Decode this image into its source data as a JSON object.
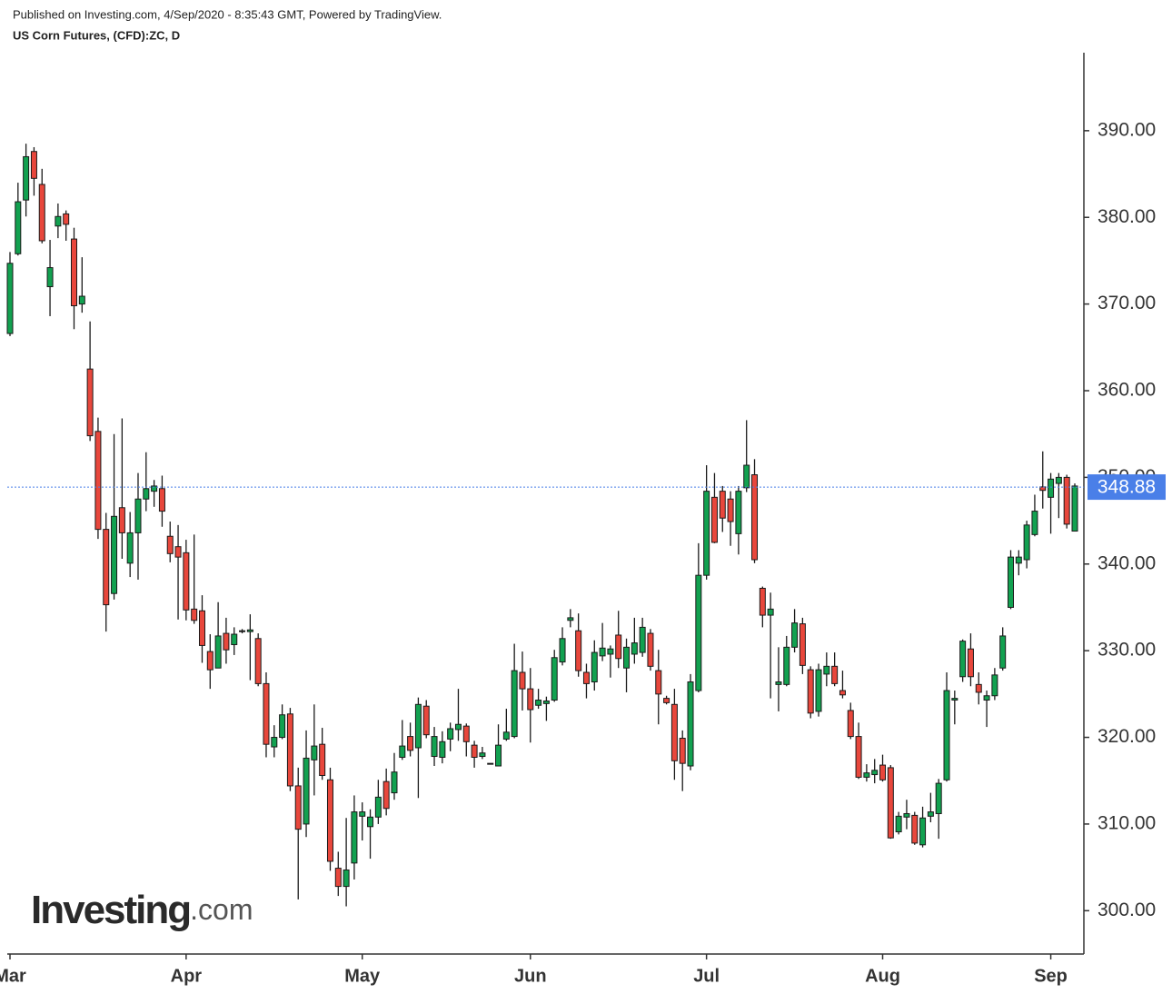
{
  "chart_data": {
    "type": "candlestick",
    "subtitle": "Published on Investing.com, 4/Sep/2020 - 8:35:43 GMT, Powered by TradingView.",
    "title": "US Corn Futures, (CFD):ZC, D",
    "watermark": {
      "brand": "Investing",
      "suffix": ".com"
    },
    "categories": [
      "Mar",
      null,
      null,
      null,
      null,
      null,
      null,
      null,
      null,
      null,
      null,
      null,
      null,
      null,
      null,
      null,
      null,
      null,
      null,
      null,
      null,
      null,
      "Apr",
      null,
      null,
      null,
      null,
      null,
      null,
      null,
      null,
      null,
      null,
      null,
      null,
      null,
      null,
      null,
      null,
      null,
      null,
      null,
      null,
      null,
      "May",
      null,
      null,
      null,
      null,
      null,
      null,
      null,
      null,
      null,
      null,
      null,
      null,
      null,
      null,
      null,
      null,
      null,
      null,
      null,
      null,
      "Jun",
      null,
      null,
      null,
      null,
      null,
      null,
      null,
      null,
      null,
      null,
      null,
      null,
      null,
      null,
      null,
      null,
      null,
      null,
      null,
      null,
      null,
      "Jul",
      null,
      null,
      null,
      null,
      null,
      null,
      null,
      null,
      null,
      null,
      null,
      null,
      null,
      null,
      null,
      null,
      null,
      null,
      null,
      null,
      null,
      "Aug",
      null,
      null,
      null,
      null,
      null,
      null,
      null,
      null,
      null,
      null,
      null,
      null,
      null,
      null,
      null,
      null,
      null,
      null,
      null,
      null,
      "Sep",
      null,
      null,
      null
    ],
    "open": [
      366.6,
      375.8,
      382,
      387.6,
      383.8,
      372,
      379,
      380.4,
      377.5,
      370,
      362.5,
      355.3,
      344,
      336.6,
      346.5,
      340.1,
      343.6,
      347.5,
      348.4,
      348.7,
      343.2,
      342,
      341.3,
      334.8,
      334.6,
      329.9,
      328,
      332,
      330.7,
      332.2,
      332.2,
      331.4,
      326.2,
      318.9,
      320,
      322.7,
      314.4,
      310,
      317.4,
      319.2,
      315.1,
      304.9,
      302.8,
      305.5,
      310.9,
      309.7,
      310.8,
      314.9,
      313.6,
      317.7,
      320.1,
      318.8,
      323.6,
      317.8,
      317.7,
      319.8,
      320.9,
      321.3,
      319.1,
      317.8,
      316.9,
      316.7,
      319.8,
      320.1,
      327.5,
      325.6,
      323.7,
      323.9,
      324.3,
      328.7,
      333.5,
      332.3,
      327.5,
      326.4,
      329.4,
      329.6,
      331.8,
      328,
      329.6,
      329.8,
      332,
      327.7,
      324.5,
      323.8,
      319.9,
      316.7,
      325.4,
      338.7,
      347.7,
      348.4,
      347.5,
      343.5,
      348.8,
      350.3,
      337.2,
      334.1,
      326.1,
      326.1,
      330.4,
      333.1,
      327.8,
      323,
      327.3,
      328.2,
      325.4,
      323.1,
      320.1,
      315.4,
      315.7,
      316.8,
      316.5,
      309.1,
      310.8,
      311,
      307.6,
      310.9,
      311.2,
      315.1,
      324.3,
      327,
      330.2,
      326.1,
      324.3,
      324.8,
      328,
      335,
      340.1,
      340.5,
      343.4,
      348.9,
      347.7,
      349.3,
      350,
      343.8
    ],
    "high": [
      376,
      384,
      388.5,
      388.1,
      385.6,
      377.4,
      381.6,
      380.8,
      378.8,
      375.4,
      368,
      356.9,
      345.9,
      355,
      356.8,
      346,
      350.5,
      352.9,
      349.7,
      350.2,
      344.9,
      344.5,
      342.8,
      343.4,
      336.4,
      331.9,
      335.6,
      333.8,
      332.7,
      332.5,
      334.2,
      332,
      327.5,
      321.4,
      323.8,
      323.4,
      316.5,
      320.8,
      323.8,
      321.1,
      316.5,
      306.8,
      310.7,
      313.3,
      312.5,
      311.7,
      315.1,
      316.4,
      318.2,
      322,
      321.7,
      324.6,
      324.3,
      321.2,
      320.7,
      321.7,
      325.6,
      321.6,
      319.6,
      318.9,
      317,
      321.5,
      323.3,
      330.8,
      329.9,
      328,
      325.6,
      324.7,
      330.1,
      332.7,
      334.8,
      334.3,
      328.5,
      331.2,
      333.2,
      330.6,
      334.6,
      331.4,
      333.8,
      333.8,
      332.5,
      330.1,
      324.8,
      325.6,
      320.8,
      327.3,
      342.4,
      351.4,
      350.5,
      349,
      348.4,
      349,
      356.6,
      352.1,
      337.4,
      336.7,
      330.4,
      331.7,
      334.8,
      333.8,
      328.2,
      328.5,
      329.8,
      329.8,
      327.7,
      324,
      321.7,
      316.9,
      317.5,
      318,
      316.8,
      311.4,
      312.8,
      311.4,
      312,
      313.6,
      315.2,
      327.5,
      325.4,
      331.3,
      332,
      327.5,
      325.4,
      328,
      332.7,
      341.6,
      341.6,
      345,
      348,
      353,
      350.5,
      350.5,
      350.3,
      349.3
    ],
    "low": [
      366.3,
      375.6,
      380.1,
      382.5,
      377,
      368.6,
      377.6,
      377.3,
      367.1,
      369,
      354.2,
      342.9,
      332.2,
      335.9,
      340.6,
      338.5,
      338.2,
      346.1,
      346.6,
      344.3,
      340.2,
      333.6,
      333.5,
      333.1,
      328.6,
      325.6,
      328,
      328.5,
      329.5,
      332,
      326.6,
      325.9,
      317.7,
      317.7,
      319.8,
      313.8,
      301.3,
      308.5,
      313.3,
      315.1,
      304.6,
      301.7,
      300.5,
      303.6,
      308.1,
      306,
      310,
      311,
      312.8,
      317.4,
      317.8,
      313,
      319.9,
      316.7,
      317,
      318.4,
      319.6,
      317.8,
      316.5,
      317.5,
      316.9,
      316.7,
      319.6,
      319.9,
      323.1,
      319.4,
      323.3,
      321.9,
      324.1,
      328.3,
      332.7,
      327,
      324.5,
      325.4,
      328.8,
      326.9,
      328,
      325.2,
      328.5,
      329.3,
      327.7,
      321.5,
      323.8,
      315.1,
      313.8,
      316.2,
      325.2,
      338.2,
      342.4,
      343.7,
      342.1,
      341.1,
      348.3,
      340.1,
      332.7,
      324.5,
      323,
      325.9,
      329.8,
      327.3,
      322.2,
      322.4,
      325.9,
      325.9,
      324.5,
      319.8,
      315.2,
      314.9,
      314.7,
      314.9,
      308.3,
      308.8,
      309.4,
      307.6,
      307.3,
      310.2,
      308.3,
      314.9,
      321.5,
      326.4,
      325.9,
      323.8,
      321.2,
      324.3,
      327.7,
      334.8,
      338.7,
      339.5,
      343.2,
      346.4,
      343.5,
      345.3,
      344.1,
      343.8
    ],
    "close": [
      374.7,
      381.8,
      387,
      384.5,
      377.3,
      374.2,
      380.1,
      379.2,
      369.8,
      370.9,
      354.8,
      344,
      335.3,
      345.5,
      343.6,
      343.6,
      347.5,
      348.7,
      349,
      346.1,
      341.2,
      340.8,
      334.7,
      333.5,
      330.6,
      327.8,
      331.7,
      330.1,
      331.9,
      332.3,
      332.4,
      326.2,
      319.2,
      320,
      322.6,
      314.4,
      309.4,
      317.6,
      319,
      315.6,
      305.7,
      302.8,
      304.7,
      311.4,
      311.4,
      310.8,
      313.1,
      311.8,
      316,
      319,
      318.5,
      323.8,
      320.3,
      320.1,
      319.5,
      321,
      321.5,
      319.5,
      317.7,
      318.2,
      317,
      319.1,
      320.6,
      327.7,
      325.6,
      323.2,
      324.3,
      324.2,
      329.2,
      331.4,
      333.8,
      327.7,
      326.2,
      329.8,
      330.3,
      330.2,
      329.1,
      330.4,
      330.9,
      332.7,
      328.2,
      325,
      324,
      317.3,
      317,
      326.4,
      338.7,
      348.4,
      342.5,
      345.3,
      344.9,
      348.4,
      351.4,
      340.5,
      334.1,
      334.8,
      326.4,
      330.4,
      333.2,
      328.3,
      322.8,
      327.8,
      328.2,
      326.2,
      324.9,
      320.1,
      315.4,
      315.9,
      316.2,
      315.1,
      308.4,
      310.9,
      311.2,
      307.8,
      310.7,
      311.4,
      314.7,
      325.4,
      324.5,
      331.1,
      327,
      325.2,
      324.8,
      327.2,
      331.7,
      340.8,
      340.8,
      344.5,
      346.1,
      348.5,
      349.8,
      350,
      344.6,
      349
    ],
    "up_color": "#12a150",
    "down_color": "#e8473c",
    "ylim": [
      295,
      399
    ],
    "yticks": [
      {
        "value": 300,
        "label": "300.00"
      },
      {
        "value": 310,
        "label": "310.00"
      },
      {
        "value": 320,
        "label": "320.00"
      },
      {
        "value": 330,
        "label": "330.00"
      },
      {
        "value": 340,
        "label": "340.00"
      },
      {
        "value": 350,
        "label": "350.00"
      },
      {
        "value": 360,
        "label": "360.00"
      },
      {
        "value": 370,
        "label": "370.00"
      },
      {
        "value": 380,
        "label": "380.00"
      },
      {
        "value": 390,
        "label": "390.00"
      }
    ],
    "last_price": 348.88,
    "last_price_color": "#4a7fe8"
  }
}
